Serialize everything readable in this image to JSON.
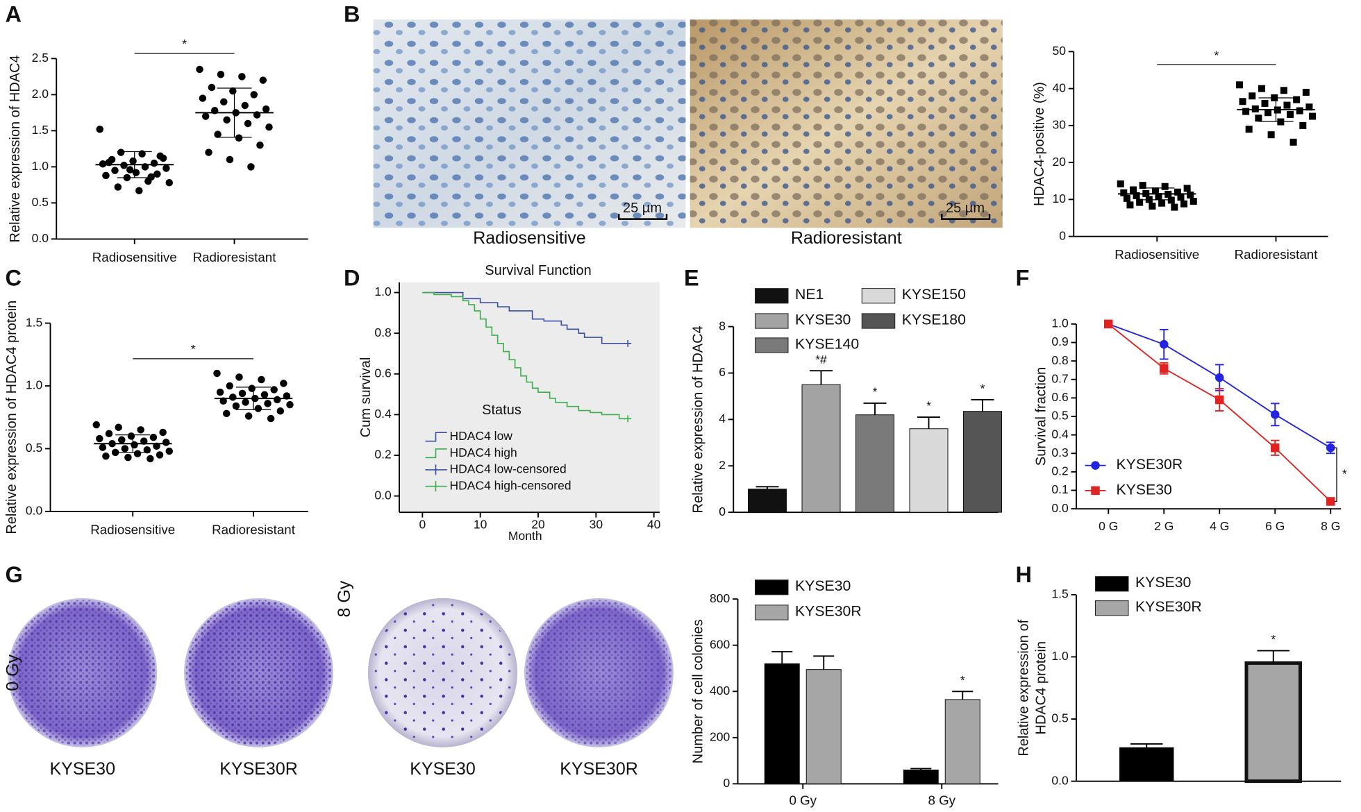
{
  "figure": {
    "panel_labels": [
      "A",
      "B",
      "C",
      "D",
      "E",
      "F",
      "G",
      "H"
    ],
    "image_captions": [
      "Radiosensitive",
      "Radioresistant"
    ],
    "scale_bar": "25 µm",
    "dish_rows": [
      "0 Gy",
      "8 Gy"
    ],
    "dish_labels": [
      "KYSE30",
      "KYSE30R",
      "KYSE30",
      "KYSE30R"
    ]
  },
  "chart_data": [
    {
      "type": "scatter",
      "marker": "circle",
      "y_label": "Relative expression of HDAC4",
      "categories": [
        "Radiosensitive",
        "Radioresistant"
      ],
      "values": [
        [
          1.52,
          1.2,
          1.18,
          1.12,
          1.1,
          1.08,
          1.05,
          1.04,
          1.02,
          1.0,
          0.98,
          0.95,
          0.92,
          0.9,
          0.88,
          0.85,
          0.8,
          0.78,
          0.72,
          0.67,
          1.15,
          1.06,
          0.96,
          0.86
        ],
        [
          2.35,
          2.28,
          2.25,
          2.2,
          2.1,
          2.05,
          2.0,
          1.95,
          1.9,
          1.85,
          1.8,
          1.78,
          1.75,
          1.72,
          1.7,
          1.65,
          1.6,
          1.55,
          1.45,
          1.4,
          1.3,
          1.2,
          1.1,
          1.0
        ]
      ],
      "mean": [
        1.03,
        1.75
      ],
      "sd": [
        0.18,
        0.34
      ],
      "annotation": "*",
      "ylim": [
        0,
        2.5
      ],
      "yticks": [
        {
          "value": 0,
          "label": "0.0"
        },
        {
          "value": 0.5,
          "label": "0.5"
        },
        {
          "value": 1,
          "label": "1.0"
        },
        {
          "value": 1.5,
          "label": "1.5"
        },
        {
          "value": 2,
          "label": "2.0"
        },
        {
          "value": 2.5,
          "label": "2.5"
        }
      ]
    },
    {
      "type": "scatter",
      "marker": "square",
      "y_label": "HDAC4-positive (%)",
      "categories": [
        "Radiosensitive",
        "Radioresistant"
      ],
      "values": [
        [
          14.2,
          13.8,
          13.5,
          13,
          12.6,
          12.3,
          12,
          11.8,
          11.6,
          11.4,
          11.2,
          11,
          10.8,
          10.6,
          10.3,
          10,
          9.8,
          9.5,
          9.2,
          9,
          8.8,
          8.5,
          8.2,
          7.9
        ],
        [
          41,
          40,
          39.5,
          39,
          38,
          37.5,
          37,
          36.5,
          36,
          35.5,
          35,
          34.5,
          34.2,
          34,
          33.8,
          33.5,
          33,
          32.5,
          32,
          31,
          30,
          29,
          27.5,
          25.5
        ]
      ],
      "mean": [
        11.5,
        34.3
      ],
      "sd": [
        1.6,
        3.2
      ],
      "annotation": "*",
      "ylim": [
        0,
        50
      ],
      "yticks": [
        0,
        10,
        20,
        30,
        40,
        50
      ]
    },
    {
      "type": "scatter",
      "marker": "circle",
      "y_label": "Relative expression of HDAC4 protein",
      "categories": [
        "Radiosensitive",
        "Radioresistant"
      ],
      "values": [
        [
          0.69,
          0.67,
          0.65,
          0.63,
          0.62,
          0.6,
          0.59,
          0.58,
          0.57,
          0.56,
          0.55,
          0.54,
          0.53,
          0.52,
          0.51,
          0.5,
          0.49,
          0.48,
          0.47,
          0.46,
          0.45,
          0.44,
          0.43,
          0.42
        ],
        [
          1.1,
          1.07,
          1.05,
          1.02,
          1.0,
          0.98,
          0.97,
          0.95,
          0.94,
          0.93,
          0.92,
          0.91,
          0.9,
          0.89,
          0.88,
          0.87,
          0.86,
          0.85,
          0.84,
          0.82,
          0.8,
          0.78,
          0.76,
          0.74
        ]
      ],
      "mean": [
        0.54,
        0.9
      ],
      "sd": [
        0.07,
        0.09
      ],
      "annotation": "*",
      "ylim": [
        0,
        1.5
      ],
      "yticks": [
        {
          "value": 0,
          "label": "0.0"
        },
        {
          "value": 0.5,
          "label": "0.5"
        },
        {
          "value": 1,
          "label": "1.0"
        },
        {
          "value": 1.5,
          "label": "1.5"
        }
      ]
    },
    {
      "type": "survival",
      "title": "Survival Function",
      "x_label": "Month",
      "y_label": "Cum survival",
      "legend_title": "Status",
      "xlim": [
        -4,
        41
      ],
      "xticks": [
        0,
        10,
        20,
        30,
        40
      ],
      "ylim": [
        -0.08,
        1.05
      ],
      "yticks": [
        {
          "value": 0,
          "label": "0.0"
        },
        {
          "value": 0.2,
          "label": "0.2"
        },
        {
          "value": 0.4,
          "label": "0.4"
        },
        {
          "value": 0.6,
          "label": "0.6"
        },
        {
          "value": 0.8,
          "label": "0.8"
        },
        {
          "value": 1,
          "label": "1.0"
        }
      ],
      "series": [
        {
          "name": "HDAC4 low",
          "censored_name": "HDAC4 low-censored",
          "color": "#3b4ea3",
          "x": [
            0,
            7,
            10,
            13,
            15,
            19,
            21,
            24,
            25,
            27,
            28,
            31,
            35.5
          ],
          "values": [
            1,
            0.97,
            0.95,
            0.93,
            0.91,
            0.87,
            0.86,
            0.84,
            0.82,
            0.8,
            0.78,
            0.75,
            0.75
          ]
        },
        {
          "name": "HDAC4 high",
          "censored_name": "HDAC4 high-censored",
          "color": "#3cae4b",
          "x": [
            0,
            2,
            5,
            7,
            8,
            9,
            10,
            11,
            12,
            13,
            14,
            15,
            16,
            17,
            18,
            19,
            20,
            22,
            23,
            25,
            27,
            29,
            31,
            34,
            35.5
          ],
          "values": [
            1,
            0.99,
            0.98,
            0.96,
            0.94,
            0.91,
            0.87,
            0.83,
            0.79,
            0.75,
            0.71,
            0.67,
            0.63,
            0.59,
            0.56,
            0.53,
            0.51,
            0.48,
            0.46,
            0.44,
            0.42,
            0.41,
            0.4,
            0.38,
            0.38
          ]
        }
      ]
    },
    {
      "type": "bar",
      "y_label": "Relative expression of HDAC4",
      "categories": [
        "NE1",
        "KYSE30",
        "KYSE140",
        "KYSE150",
        "KYSE180"
      ],
      "values": [
        1,
        5.5,
        4.2,
        3.6,
        4.35
      ],
      "errors": [
        0.1,
        0.6,
        0.5,
        0.5,
        0.5
      ],
      "colors": [
        "#111111",
        "#a3a3a3",
        "#7a7a7a",
        "#d9d9d9",
        "#555555"
      ],
      "annotations": [
        null,
        "*#",
        "*",
        "*",
        "*"
      ],
      "ylim": [
        0,
        8
      ],
      "yticks": [
        0,
        2,
        4,
        6,
        8
      ]
    },
    {
      "type": "line",
      "y_label": "Survival fraction",
      "categories": [
        "0 G",
        "2 G",
        "4 G",
        "6 G",
        "8 G"
      ],
      "series": [
        {
          "name": "KYSE30R",
          "color": "#2323e0",
          "marker": "circle",
          "values": [
            1,
            0.89,
            0.71,
            0.51,
            0.33
          ],
          "errors": [
            0,
            0.08,
            0.07,
            0.06,
            0.03
          ]
        },
        {
          "name": "KYSE30",
          "color": "#e02222",
          "marker": "square",
          "values": [
            1,
            0.76,
            0.59,
            0.33,
            0.04
          ],
          "errors": [
            0,
            0.03,
            0.06,
            0.04,
            0.01
          ]
        }
      ],
      "annotation": "*",
      "ylim": [
        0,
        1
      ],
      "yticks": [
        {
          "value": 0,
          "label": "0.0"
        },
        {
          "value": 0.1,
          "label": "0.1"
        },
        {
          "value": 0.2,
          "label": "0.2"
        },
        {
          "value": 0.3,
          "label": "0.3"
        },
        {
          "value": 0.4,
          "label": "0.4"
        },
        {
          "value": 0.5,
          "label": "0.5"
        },
        {
          "value": 0.6,
          "label": "0.6"
        },
        {
          "value": 0.7,
          "label": "0.7"
        },
        {
          "value": 0.8,
          "label": "0.8"
        },
        {
          "value": 0.9,
          "label": "0.9"
        },
        {
          "value": 1,
          "label": "1.0"
        }
      ]
    },
    {
      "type": "bar",
      "y_label": "Number of cell colonies",
      "categories": [
        "0 Gy",
        "8 Gy"
      ],
      "series": [
        {
          "name": "KYSE30",
          "color": "#000000",
          "values": [
            520,
            60
          ],
          "errors": [
            52,
            6
          ]
        },
        {
          "name": "KYSE30R",
          "color": "#a6a6a6",
          "values": [
            495,
            365
          ],
          "errors": [
            58,
            35
          ],
          "annotations": [
            null,
            "*"
          ]
        }
      ],
      "ylim": [
        0,
        800
      ],
      "yticks": [
        0,
        200,
        400,
        600,
        800
      ]
    },
    {
      "type": "bar",
      "y_label": [
        "Relative expression of",
        "HDAC4 protein"
      ],
      "series": [
        {
          "name": "KYSE30",
          "color": "#000000",
          "values": [
            0.27
          ],
          "errors": [
            0.03
          ]
        },
        {
          "name": "KYSE30R",
          "color": "#a6a6a6",
          "values": [
            0.95
          ],
          "errors": [
            0.1
          ],
          "annotations": [
            "*"
          ]
        }
      ],
      "ylim": [
        0,
        1.5
      ],
      "yticks": [
        {
          "value": 0,
          "label": "0.0"
        },
        {
          "value": 0.5,
          "label": "0.5"
        },
        {
          "value": 1,
          "label": "1.0"
        },
        {
          "value": 1.5,
          "label": "1.5"
        }
      ]
    }
  ]
}
